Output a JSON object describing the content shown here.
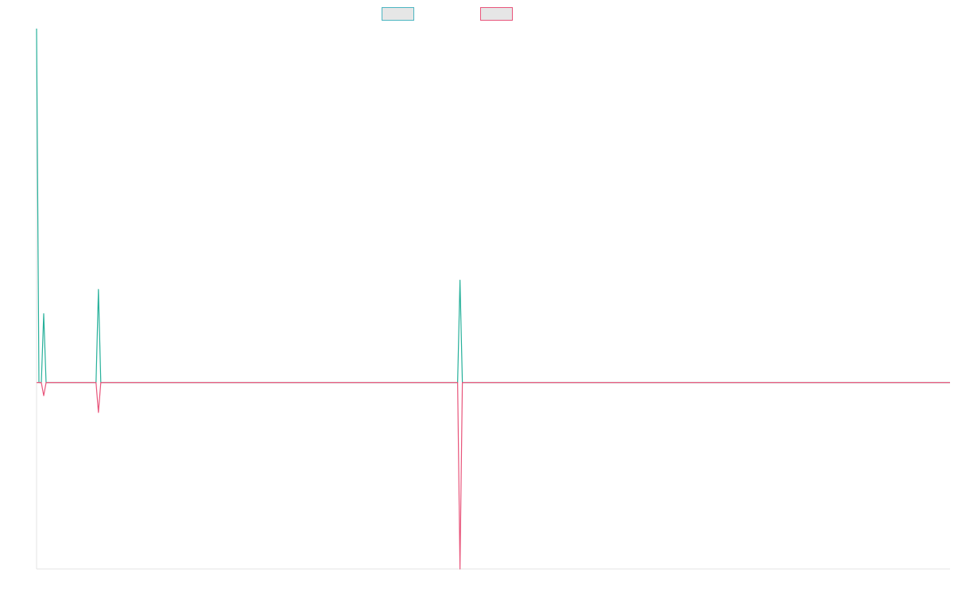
{
  "chart_data": {
    "type": "line",
    "title": "",
    "xlabel": "",
    "ylabel": "",
    "grid": false,
    "legend_position": "top-center",
    "x": [
      0,
      1,
      2,
      3,
      4,
      5,
      6,
      7,
      8,
      9,
      10,
      11,
      12,
      13,
      14,
      15,
      16,
      17,
      18,
      19,
      20,
      21,
      22,
      23,
      24,
      25,
      26,
      27,
      28,
      29,
      30,
      31,
      32,
      33,
      34,
      35,
      36,
      37,
      38,
      39,
      40,
      41,
      42,
      43,
      44,
      45,
      46,
      47,
      48,
      49,
      50,
      51,
      52,
      53,
      54,
      55,
      56,
      57,
      58,
      59,
      60,
      61,
      62,
      63,
      64,
      65,
      66,
      67,
      68,
      69,
      70,
      71,
      72,
      73,
      74,
      75,
      76,
      77,
      78,
      79,
      80,
      81,
      82,
      83,
      84,
      85,
      86,
      87,
      88,
      89,
      90,
      91,
      92,
      93,
      94,
      95,
      96,
      97,
      98,
      99,
      100,
      101,
      102,
      103,
      104,
      105,
      106,
      107,
      108,
      109,
      110,
      111,
      112,
      113,
      114,
      115,
      116,
      117,
      118,
      119,
      120,
      121,
      122,
      123,
      124,
      125,
      126,
      127,
      128,
      129,
      130,
      131,
      132,
      133,
      134,
      135,
      136,
      137,
      138,
      139,
      140,
      141,
      142,
      143,
      144,
      145,
      146,
      147,
      148,
      149,
      150,
      151,
      152,
      153,
      154,
      155,
      156,
      157,
      158,
      159,
      160,
      161,
      162,
      163,
      164,
      165,
      166,
      167,
      168,
      169,
      170,
      171,
      172,
      173,
      174,
      175,
      176,
      177,
      178,
      179,
      180,
      181,
      182,
      183,
      184,
      185,
      186,
      187,
      188,
      189,
      190,
      191,
      192,
      193,
      194,
      195,
      196,
      197,
      198,
      199,
      200,
      201,
      202,
      203,
      204,
      205,
      206,
      207,
      208,
      209,
      210,
      211,
      212,
      213,
      214,
      215,
      216,
      217,
      218,
      219,
      220,
      221,
      222,
      223,
      224,
      225,
      226,
      227,
      228,
      229,
      230,
      231,
      232,
      233,
      234,
      235,
      236,
      237,
      238,
      239,
      240,
      241,
      242,
      243,
      244,
      245,
      246,
      247,
      248,
      249,
      250,
      251,
      252,
      253,
      254,
      255,
      256,
      257,
      258,
      259,
      260,
      261,
      262,
      263,
      264,
      265,
      266,
      267,
      268,
      269,
      270,
      271,
      272,
      273,
      274,
      275,
      276,
      277,
      278,
      279,
      280,
      281,
      282,
      283,
      284,
      285,
      286,
      287,
      288,
      289,
      290,
      291,
      292,
      293,
      294,
      295,
      296,
      297,
      298,
      299,
      300,
      301,
      302,
      303,
      304,
      305,
      306,
      307,
      308,
      309,
      310,
      311,
      312,
      313,
      314,
      315,
      316,
      317,
      318,
      319,
      320,
      321,
      322,
      323,
      324,
      325,
      326,
      327,
      328,
      329,
      330,
      331,
      332,
      333,
      334,
      335,
      336,
      337,
      338,
      339,
      340,
      341,
      342,
      343,
      344,
      345,
      346,
      347,
      348,
      349,
      350,
      351,
      352,
      353,
      354,
      355,
      356,
      357,
      358,
      359,
      360,
      361,
      362,
      363,
      364,
      365,
      366,
      367,
      368,
      369,
      370,
      371,
      372,
      373,
      374,
      375,
      376,
      377,
      378,
      379,
      380,
      381,
      382,
      383,
      384
    ],
    "ylim": [
      -1,
      1.9
    ],
    "series": [
      {
        "color": "#26b09a",
        "border_color": "#4bb5c1",
        "fill": "#e6e6e6",
        "spikes": {
          "0": 1.9,
          "3": 0.37,
          "26": 0.5,
          "178": 0.55
        }
      },
      {
        "color": "#e8547a",
        "border_color": "#e8547a",
        "fill": "#e6e6e6",
        "spikes": {
          "3": -0.07,
          "26": -0.16,
          "178": -1.0
        }
      }
    ]
  }
}
